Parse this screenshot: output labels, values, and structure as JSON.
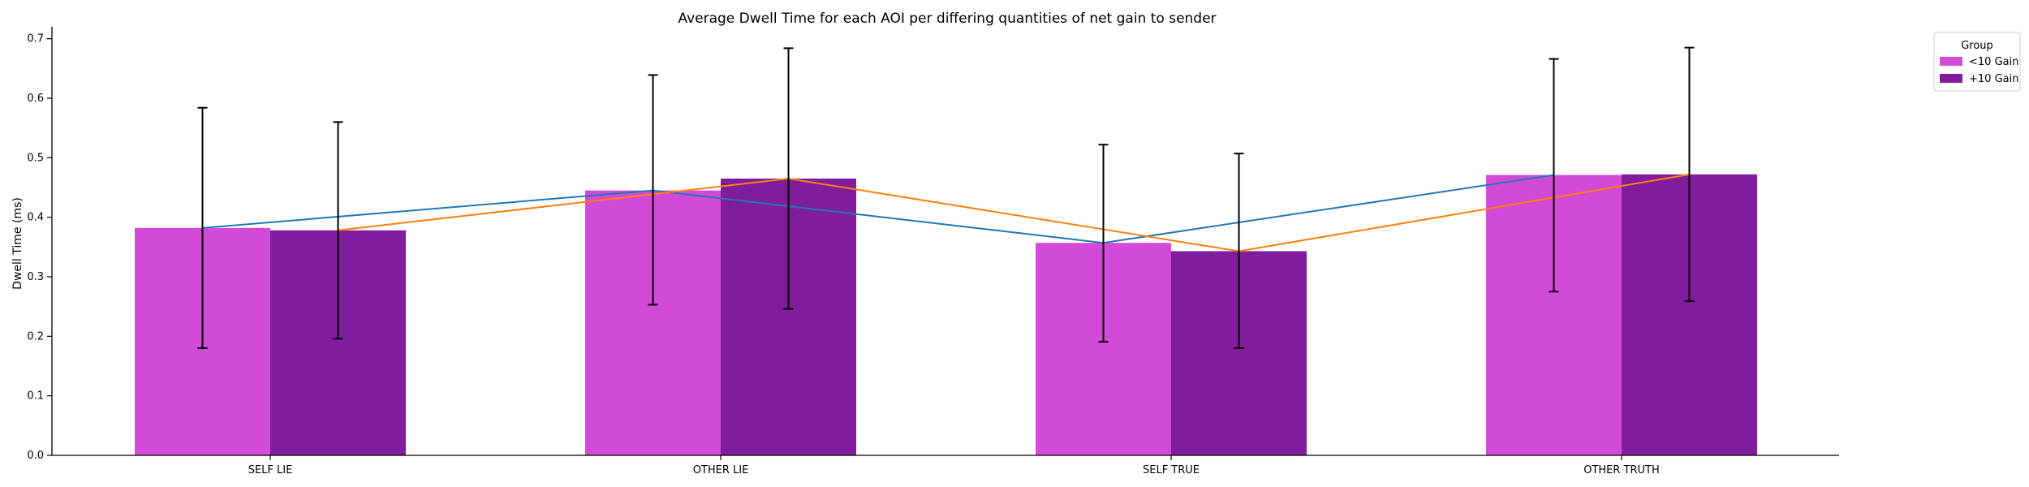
{
  "chart_data": {
    "type": "bar",
    "title": "Average Dwell Time for each AOI per differing quantities of net gain to sender",
    "xlabel": "",
    "ylabel": "Dwell Time (ms)",
    "categories": [
      "SELF LIE",
      "OTHER LIE",
      "SELF TRUE",
      "OTHER TRUTH"
    ],
    "ylim": [
      0,
      0.72
    ],
    "yticks": [
      "0.0",
      "0.1",
      "0.2",
      "0.3",
      "0.4",
      "0.5",
      "0.6",
      "0.7"
    ],
    "grid": false,
    "legend": {
      "title": "Group",
      "placement": "outside-top-right"
    },
    "series": [
      {
        "name": "<10 Gain",
        "color": "#d44ad8",
        "line_color": "#1f77b4",
        "values": [
          0.382,
          0.445,
          0.357,
          0.471
        ],
        "err_low": [
          0.18,
          0.253,
          0.191,
          0.275
        ],
        "err_high": [
          0.584,
          0.639,
          0.522,
          0.666
        ]
      },
      {
        "name": "+10 Gain",
        "color": "#7f1d9c",
        "line_color": "#ff7f0e",
        "values": [
          0.378,
          0.465,
          0.343,
          0.472
        ],
        "err_low": [
          0.196,
          0.246,
          0.18,
          0.259
        ],
        "err_high": [
          0.56,
          0.684,
          0.507,
          0.685
        ]
      }
    ]
  }
}
